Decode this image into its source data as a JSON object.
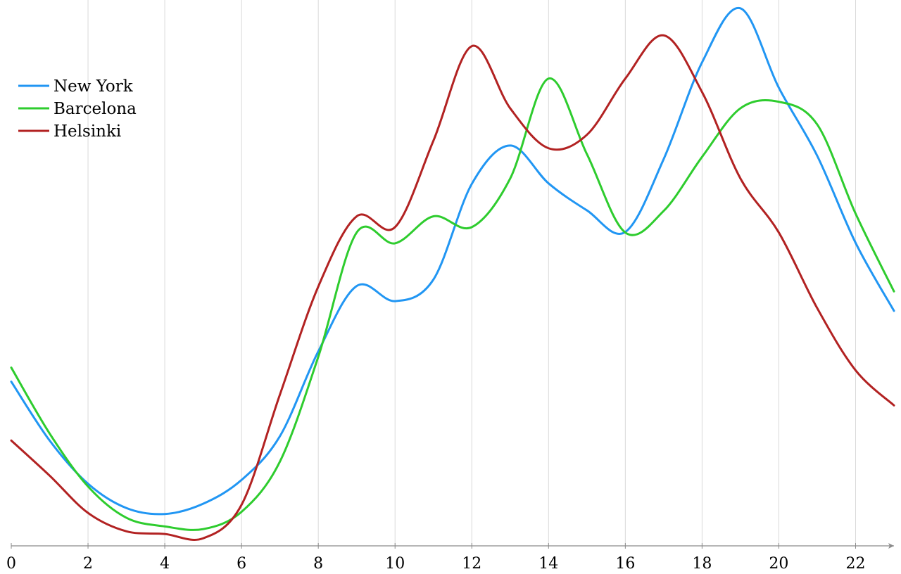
{
  "chart_data": {
    "type": "line",
    "title": "",
    "xlabel": "",
    "ylabel": "",
    "xlim": [
      0,
      23
    ],
    "ylim": [
      0,
      100
    ],
    "x_ticks": [
      0,
      2,
      4,
      6,
      8,
      10,
      12,
      14,
      16,
      18,
      20,
      22
    ],
    "x_tick_labels": [
      "0",
      "2",
      "4",
      "6",
      "8",
      "10",
      "12",
      "14",
      "16",
      "18",
      "20",
      "22"
    ],
    "grid": "vertical",
    "legend_position": "top-left",
    "x": [
      0,
      1,
      2,
      3,
      4,
      5,
      6,
      7,
      8,
      9,
      10,
      11,
      12,
      13,
      14,
      15,
      16,
      17,
      18,
      19,
      20,
      21,
      22,
      23
    ],
    "series": [
      {
        "name": "New York",
        "color": "#2196f3",
        "values": [
          30.4,
          19.5,
          11.5,
          7.0,
          5.9,
          7.8,
          12.2,
          20.3,
          36.0,
          48.1,
          45.3,
          49.3,
          67.0,
          74.1,
          67.1,
          62.1,
          58.1,
          71.6,
          89.5,
          99.5,
          84.8,
          72.2,
          56.1,
          43.5
        ]
      },
      {
        "name": "Barcelona",
        "color": "#2ecc2e",
        "values": [
          33.0,
          20.8,
          11.0,
          5.2,
          3.6,
          3.1,
          6.3,
          15.6,
          35.0,
          58.0,
          56.0,
          61.0,
          59.0,
          68.0,
          86.5,
          72.5,
          58.0,
          62.0,
          72.0,
          81.0,
          82.2,
          78.0,
          61.5,
          47.1
        ]
      },
      {
        "name": "Helsinki",
        "color": "#b22222",
        "values": [
          19.5,
          13.0,
          6.1,
          2.7,
          2.2,
          1.4,
          7.6,
          28.0,
          48.0,
          61.0,
          59.0,
          75.0,
          92.5,
          81.0,
          73.6,
          76.1,
          86.5,
          94.5,
          84.0,
          68.0,
          58.0,
          44.0,
          32.5,
          26.0
        ]
      }
    ]
  }
}
